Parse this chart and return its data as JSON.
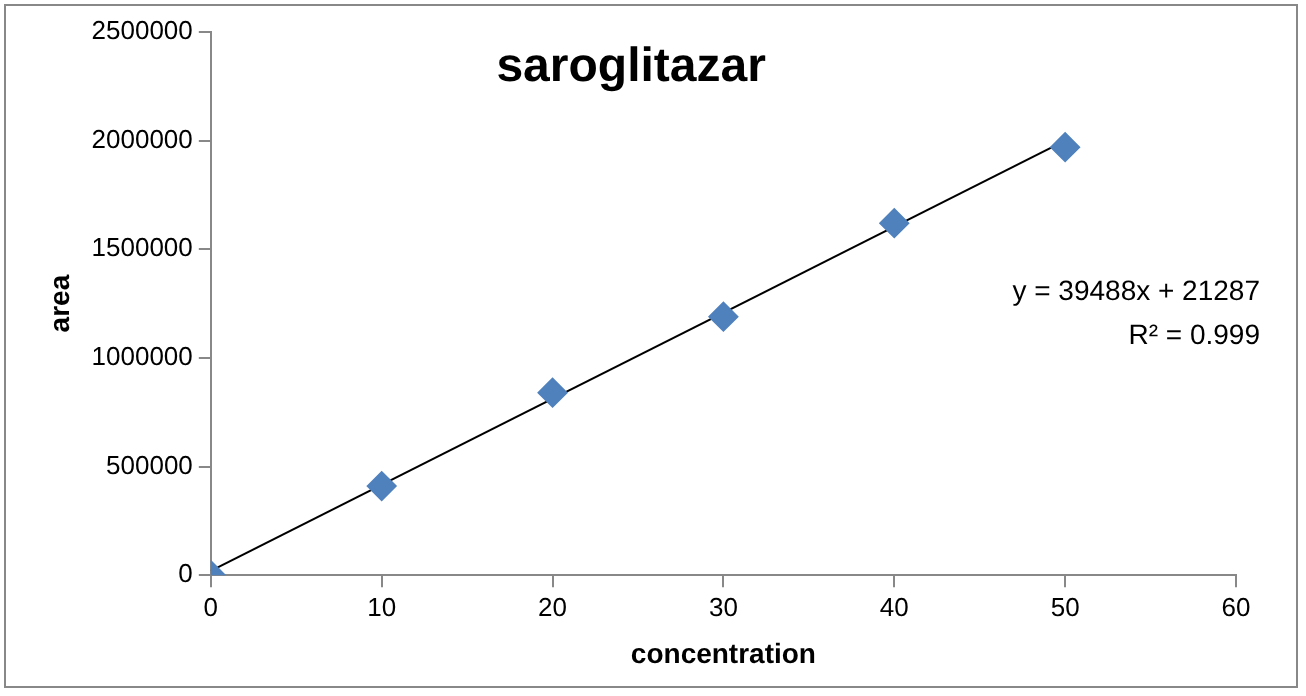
{
  "chart_data": {
    "type": "scatter",
    "title": "saroglitazar",
    "xlabel": "concentration",
    "ylabel": "area",
    "series": [
      {
        "color": "#4f81bd",
        "x": [
          0,
          10,
          20,
          30,
          40,
          50
        ],
        "values": [
          0,
          410000,
          840000,
          1190000,
          1620000,
          1970000
        ],
        "marker": "diamond"
      },
      {
        "type": "line",
        "color": "#000000",
        "x": [
          0,
          50
        ],
        "values": [
          20000,
          2000000
        ],
        "marker": "none"
      }
    ],
    "annotations": [
      "y = 39488x + 21287",
      "R² = 0.999"
    ],
    "xlim": [
      0,
      60
    ],
    "xticks": [
      0,
      10,
      20,
      30,
      40,
      50,
      60
    ],
    "ylim": [
      0,
      2500000
    ],
    "yticks": [
      0,
      500000,
      1000000,
      1500000,
      2000000,
      2500000
    ],
    "grid": false,
    "legend": false
  }
}
